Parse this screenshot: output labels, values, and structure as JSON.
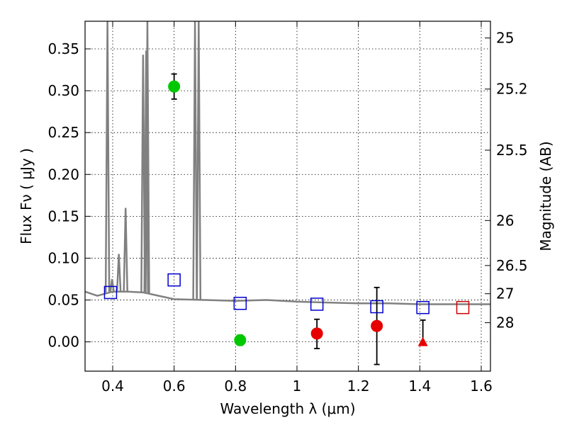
{
  "chart_data": {
    "type": "scatter",
    "xlabel": "Wavelength  λ (μm)",
    "ylabel": "Flux  Fν  ( μJy )",
    "ylabel_right": "Magnitude (AB)",
    "xlim": [
      0.31,
      1.63
    ],
    "ylim": [
      -0.035,
      0.383
    ],
    "grid": true,
    "x_ticks": [
      0.4,
      0.6,
      0.8,
      1.0,
      1.2,
      1.4,
      1.6
    ],
    "x_tick_labels": [
      "0.4",
      "0.6",
      "0.8",
      "1",
      "1.2",
      "1.4",
      "1.6"
    ],
    "y_ticks": [
      0.0,
      0.05,
      0.1,
      0.15,
      0.2,
      0.25,
      0.3,
      0.35
    ],
    "y_tick_labels": [
      "0.00",
      "0.05",
      "0.10",
      "0.15",
      "0.20",
      "0.25",
      "0.30",
      "0.35"
    ],
    "right_ticks": [
      {
        "label": "25",
        "flux": 0.363
      },
      {
        "label": "25.2",
        "flux": 0.302
      },
      {
        "label": "25.5",
        "flux": 0.229
      },
      {
        "label": "26",
        "flux": 0.145
      },
      {
        "label": "26.5",
        "flux": 0.0912
      },
      {
        "label": "27",
        "flux": 0.0575
      },
      {
        "label": "28",
        "flux": 0.0229
      }
    ],
    "colors": {
      "template": "#808080",
      "green": "#00c800",
      "red": "#e60000",
      "model_box": "#0000cc",
      "model_box_alt": "#cc0000",
      "errorbar": "#000000"
    },
    "template_sed": {
      "continuum": [
        [
          0.31,
          0.06
        ],
        [
          0.35,
          0.055
        ],
        [
          0.38,
          0.058
        ],
        [
          0.4,
          0.06
        ],
        [
          0.45,
          0.06
        ],
        [
          0.5,
          0.059
        ],
        [
          0.55,
          0.055
        ],
        [
          0.6,
          0.051
        ],
        [
          0.7,
          0.05
        ],
        [
          0.8,
          0.049
        ],
        [
          0.9,
          0.05
        ],
        [
          1.0,
          0.048
        ],
        [
          1.1,
          0.047
        ],
        [
          1.2,
          0.046
        ],
        [
          1.3,
          0.046
        ],
        [
          1.4,
          0.045
        ],
        [
          1.5,
          0.045
        ],
        [
          1.63,
          0.045
        ]
      ],
      "emission_lines": [
        {
          "x": 0.383,
          "peak": 0.383
        },
        {
          "x": 0.398,
          "peak": 0.075
        },
        {
          "x": 0.42,
          "peak": 0.105
        },
        {
          "x": 0.442,
          "peak": 0.16
        },
        {
          "x": 0.499,
          "peak": 0.343
        },
        {
          "x": 0.509,
          "peak": 0.348
        },
        {
          "x": 0.513,
          "peak": 0.383
        },
        {
          "x": 0.668,
          "peak": 0.383
        },
        {
          "x": 0.68,
          "peak": 0.383
        }
      ]
    },
    "series": [
      {
        "marker": "circle",
        "color": "green",
        "points": [
          {
            "x": 0.6,
            "y": 0.305,
            "ylo": 0.29,
            "yhi": 0.32
          },
          {
            "x": 0.815,
            "y": 0.002,
            "ylo": -0.004,
            "yhi": 0.008
          }
        ]
      },
      {
        "marker": "circle",
        "color": "red",
        "points": [
          {
            "x": 1.065,
            "y": 0.01,
            "ylo": -0.008,
            "yhi": 0.027
          },
          {
            "x": 1.26,
            "y": 0.019,
            "ylo": -0.027,
            "yhi": 0.065
          }
        ]
      },
      {
        "marker": "triangle",
        "color": "red",
        "points": [
          {
            "x": 1.41,
            "y": 0.0,
            "ylo": -0.002,
            "yhi": 0.026
          }
        ]
      },
      {
        "marker": "square",
        "color": "model_box",
        "points": [
          {
            "x": 0.393,
            "y": 0.059
          },
          {
            "x": 0.6,
            "y": 0.074
          },
          {
            "x": 0.815,
            "y": 0.046
          },
          {
            "x": 1.065,
            "y": 0.045
          },
          {
            "x": 1.26,
            "y": 0.042
          },
          {
            "x": 1.41,
            "y": 0.041
          }
        ]
      },
      {
        "marker": "square",
        "color": "model_box_alt",
        "points": [
          {
            "x": 1.54,
            "y": 0.041
          }
        ]
      }
    ]
  }
}
